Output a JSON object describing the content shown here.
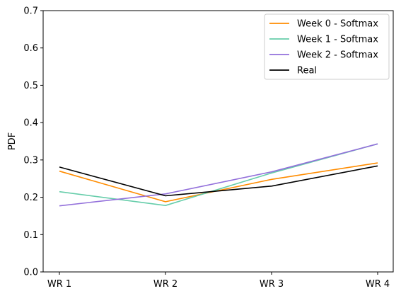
{
  "chart_data": {
    "type": "line",
    "categories": [
      "WR 1",
      "WR 2",
      "WR 3",
      "WR 4"
    ],
    "ylabel": "PDF",
    "xlabel": "",
    "ylim": [
      0,
      0.7
    ],
    "yticks": [
      "0.0",
      "0.1",
      "0.2",
      "0.3",
      "0.4",
      "0.5",
      "0.6",
      "0.7"
    ],
    "grid": false,
    "legend_position": "top-right",
    "series": [
      {
        "name": "Week 0 - Softmax",
        "color": "#ff8c00",
        "values": [
          0.27,
          0.188,
          0.248,
          0.292
        ]
      },
      {
        "name": "Week 1 - Softmax",
        "color": "#66cdaa",
        "values": [
          0.215,
          0.178,
          0.265,
          0.343
        ]
      },
      {
        "name": "Week 2 - Softmax",
        "color": "#9370db",
        "values": [
          0.177,
          0.209,
          0.268,
          0.343
        ]
      },
      {
        "name": "Real",
        "color": "#000000",
        "values": [
          0.281,
          0.204,
          0.23,
          0.284
        ]
      }
    ]
  }
}
